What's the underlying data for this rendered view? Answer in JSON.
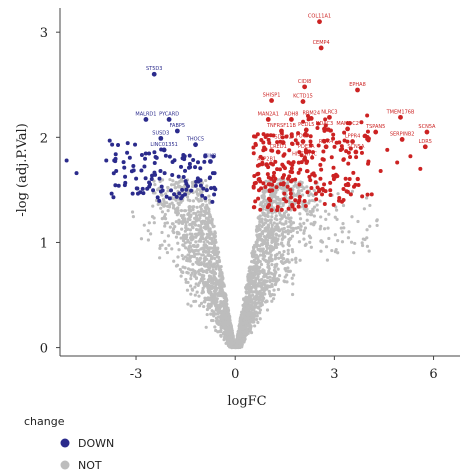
{
  "chart_data": {
    "type": "scatter",
    "xlabel": "logFC",
    "ylabel": "-log (adj.P.Val)",
    "xlim": [
      -5.3,
      6.8
    ],
    "ylim": [
      -0.08,
      3.23
    ],
    "xticks": [
      -3,
      0,
      3,
      6
    ],
    "xtick_labels": [
      "-3",
      "0",
      "3",
      "6"
    ],
    "yticks": [
      0,
      1,
      2,
      3
    ],
    "ytick_labels": [
      "0",
      "1",
      "2",
      "3"
    ],
    "legend": {
      "title": "change",
      "position": "bottom-left",
      "entries": [
        {
          "label": "DOWN",
          "color": "#2b2b8c"
        },
        {
          "label": "NOT",
          "color": "#bdbdbd"
        }
      ]
    },
    "colors": {
      "DOWN": "#2b2b8c",
      "NOT": "#bdbdbd",
      "UP": "#cc2222"
    },
    "labeled_points": [
      {
        "gene": "COL11A1",
        "x": 2.55,
        "y": 3.1,
        "group": "UP"
      },
      {
        "gene": "CEMP4",
        "x": 2.6,
        "y": 2.85,
        "group": "UP"
      },
      {
        "gene": "ST5D3",
        "x": -2.45,
        "y": 2.6,
        "group": "DOWN"
      },
      {
        "gene": "EPHA8",
        "x": 3.7,
        "y": 2.45,
        "group": "UP"
      },
      {
        "gene": "CIDI8",
        "x": 2.1,
        "y": 2.48,
        "group": "UP"
      },
      {
        "gene": "SHISP1",
        "x": 1.1,
        "y": 2.35,
        "group": "UP"
      },
      {
        "gene": "KCTD15",
        "x": 2.05,
        "y": 2.34,
        "group": "UP"
      },
      {
        "gene": "MALRD1",
        "x": -2.7,
        "y": 2.17,
        "group": "DOWN"
      },
      {
        "gene": "PYCARD",
        "x": -2.0,
        "y": 2.17,
        "group": "DOWN"
      },
      {
        "gene": "MAN2A1",
        "x": 1.0,
        "y": 2.17,
        "group": "UP"
      },
      {
        "gene": "ADH8",
        "x": 1.7,
        "y": 2.17,
        "group": "UP"
      },
      {
        "gene": "RBM24",
        "x": 2.3,
        "y": 2.18,
        "group": "UP"
      },
      {
        "gene": "NLRC3",
        "x": 2.85,
        "y": 2.19,
        "group": "UP"
      },
      {
        "gene": "TMEM176B",
        "x": 5.0,
        "y": 2.19,
        "group": "UP"
      },
      {
        "gene": "FABP5",
        "x": -1.75,
        "y": 2.06,
        "group": "DOWN"
      },
      {
        "gene": "TNFRSF11B",
        "x": 1.4,
        "y": 2.06,
        "group": "UP"
      },
      {
        "gene": "PCDL5",
        "x": 2.15,
        "y": 2.07,
        "group": "UP"
      },
      {
        "gene": "NDAC3",
        "x": 2.7,
        "y": 2.08,
        "group": "UP"
      },
      {
        "gene": "MAMDC2",
        "x": 3.4,
        "y": 2.08,
        "group": "UP"
      },
      {
        "gene": "TSPAN5",
        "x": 4.25,
        "y": 2.05,
        "group": "UP"
      },
      {
        "gene": "SCN5A",
        "x": 5.8,
        "y": 2.05,
        "group": "UP"
      },
      {
        "gene": "SUSD3",
        "x": -2.25,
        "y": 1.99,
        "group": "DOWN"
      },
      {
        "gene": "SERPINB2",
        "x": 5.05,
        "y": 1.98,
        "group": "UP"
      },
      {
        "gene": "SDFIP2",
        "x": 1.45,
        "y": 1.95,
        "group": "UP"
      },
      {
        "gene": "FOOA",
        "x": 2.05,
        "y": 1.96,
        "group": "UP"
      },
      {
        "gene": "LPPR4",
        "x": 3.55,
        "y": 1.96,
        "group": "UP"
      },
      {
        "gene": "THOC5",
        "x": -1.2,
        "y": 1.93,
        "group": "DOWN"
      },
      {
        "gene": "RIPK4",
        "x": 2.75,
        "y": 1.91,
        "group": "UP"
      },
      {
        "gene": "LDR5",
        "x": 5.75,
        "y": 1.91,
        "group": "UP"
      },
      {
        "gene": "LINC01351",
        "x": -2.15,
        "y": 1.88,
        "group": "DOWN"
      },
      {
        "gene": "PDE3A",
        "x": 2.15,
        "y": 1.86,
        "group": "UP"
      },
      {
        "gene": "CRED1",
        "x": 1.3,
        "y": 1.86,
        "group": "UP"
      },
      {
        "gene": "SCN5A",
        "x": 3.65,
        "y": 1.86,
        "group": "UP"
      },
      {
        "gene": "HIST1H1C",
        "x": 2.1,
        "y": 1.79,
        "group": "UP"
      },
      {
        "gene": "ATP2B1",
        "x": 0.95,
        "y": 1.74,
        "group": "UP"
      },
      {
        "gene": "GIKB",
        "x": -0.75,
        "y": 1.77,
        "group": "DOWN"
      }
    ]
  }
}
